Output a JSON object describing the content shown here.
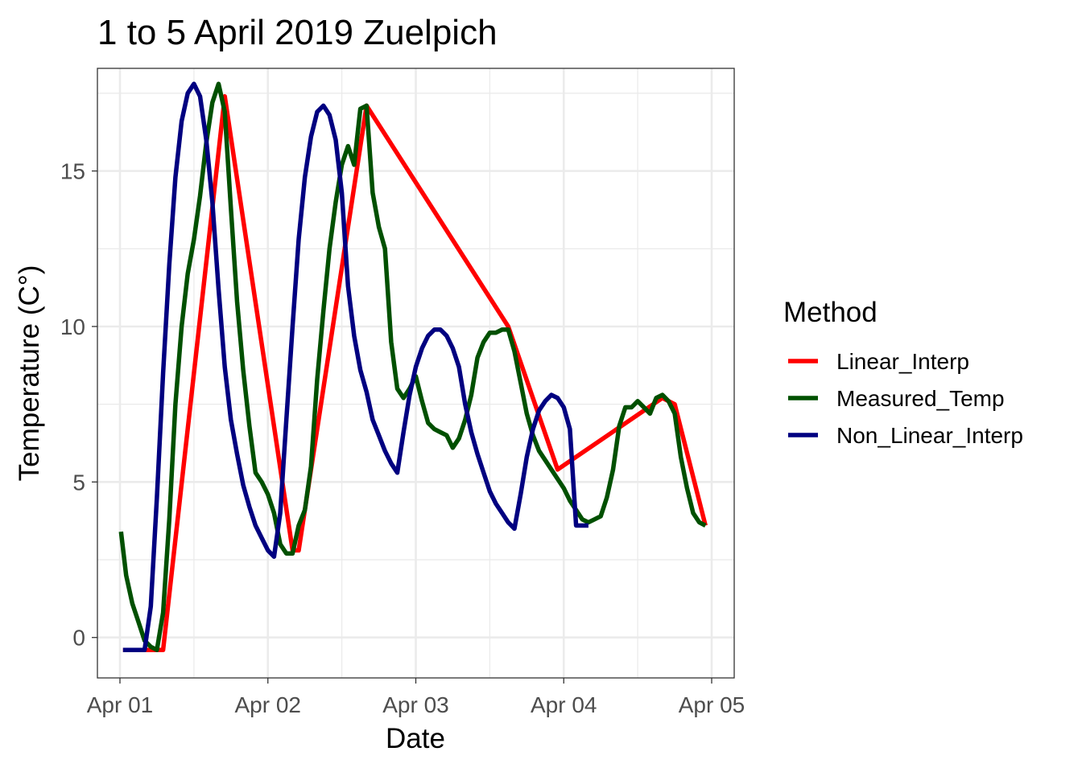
{
  "chart_data": {
    "type": "line",
    "title": "1 to 5 April 2019  Zuelpich",
    "xlabel": "Date",
    "ylabel": "Temperature (C°)",
    "x_axis": {
      "type": "date",
      "range": [
        "2019-04-01T00:00",
        "2019-04-05T00:00"
      ],
      "ticks": [
        {
          "value": "2019-04-01T00:00",
          "label": "Apr 01"
        },
        {
          "value": "2019-04-02T00:00",
          "label": "Apr 02"
        },
        {
          "value": "2019-04-03T00:00",
          "label": "Apr 03"
        },
        {
          "value": "2019-04-04T00:00",
          "label": "Apr 04"
        },
        {
          "value": "2019-04-05T00:00",
          "label": "Apr 05"
        }
      ]
    },
    "y_axis": {
      "range": [
        -1.3,
        18.3
      ],
      "ticks": [
        0,
        5,
        10,
        15
      ]
    },
    "grid": true,
    "legend": {
      "title": "Method",
      "position": "right"
    },
    "series": [
      {
        "name": "Linear_Interp",
        "color": "#FF0000",
        "points": [
          [
            "2019-04-01T00:30",
            -0.4
          ],
          [
            "2019-04-01T04:00",
            -0.4
          ],
          [
            "2019-04-01T07:00",
            -0.4
          ],
          [
            "2019-04-01T17:00",
            17.4
          ],
          [
            "2019-04-02T04:00",
            2.8
          ],
          [
            "2019-04-02T05:00",
            2.8
          ],
          [
            "2019-04-02T16:00",
            17.1
          ],
          [
            "2019-04-03T15:00",
            10.0
          ],
          [
            "2019-04-03T23:00",
            5.4
          ],
          [
            "2019-04-04T16:00",
            7.7
          ],
          [
            "2019-04-04T18:00",
            7.5
          ],
          [
            "2019-04-04T23:00",
            3.6
          ]
        ]
      },
      {
        "name": "Measured_Temp",
        "color": "#005000",
        "points": [
          [
            "2019-04-01T00:10",
            3.4
          ],
          [
            "2019-04-01T01:00",
            2.0
          ],
          [
            "2019-04-01T02:00",
            1.1
          ],
          [
            "2019-04-01T03:00",
            0.5
          ],
          [
            "2019-04-01T04:00",
            -0.1
          ],
          [
            "2019-04-01T05:00",
            -0.3
          ],
          [
            "2019-04-01T06:00",
            -0.4
          ],
          [
            "2019-04-01T07:00",
            0.8
          ],
          [
            "2019-04-01T08:00",
            3.8
          ],
          [
            "2019-04-01T09:00",
            7.5
          ],
          [
            "2019-04-01T10:00",
            10.0
          ],
          [
            "2019-04-01T11:00",
            11.7
          ],
          [
            "2019-04-01T12:00",
            12.8
          ],
          [
            "2019-04-01T13:00",
            14.2
          ],
          [
            "2019-04-01T14:00",
            15.9
          ],
          [
            "2019-04-01T15:00",
            17.2
          ],
          [
            "2019-04-01T16:00",
            17.8
          ],
          [
            "2019-04-01T17:00",
            16.9
          ],
          [
            "2019-04-01T18:00",
            13.8
          ],
          [
            "2019-04-01T19:00",
            10.8
          ],
          [
            "2019-04-01T20:00",
            8.6
          ],
          [
            "2019-04-01T21:00",
            6.8
          ],
          [
            "2019-04-01T22:00",
            5.3
          ],
          [
            "2019-04-01T23:00",
            5.0
          ],
          [
            "2019-04-02T00:00",
            4.6
          ],
          [
            "2019-04-02T01:00",
            4.0
          ],
          [
            "2019-04-02T02:00",
            3.0
          ],
          [
            "2019-04-02T03:00",
            2.7
          ],
          [
            "2019-04-02T04:00",
            2.7
          ],
          [
            "2019-04-02T05:00",
            3.6
          ],
          [
            "2019-04-02T06:00",
            4.1
          ],
          [
            "2019-04-02T07:00",
            5.5
          ],
          [
            "2019-04-02T08:00",
            8.3
          ],
          [
            "2019-04-02T09:00",
            10.5
          ],
          [
            "2019-04-02T10:00",
            12.5
          ],
          [
            "2019-04-02T11:00",
            14.0
          ],
          [
            "2019-04-02T12:00",
            15.2
          ],
          [
            "2019-04-02T13:00",
            15.8
          ],
          [
            "2019-04-02T14:00",
            15.2
          ],
          [
            "2019-04-02T15:00",
            17.0
          ],
          [
            "2019-04-02T16:00",
            17.1
          ],
          [
            "2019-04-02T17:00",
            14.3
          ],
          [
            "2019-04-02T18:00",
            13.2
          ],
          [
            "2019-04-02T19:00",
            12.5
          ],
          [
            "2019-04-02T20:00",
            9.5
          ],
          [
            "2019-04-02T21:00",
            8.0
          ],
          [
            "2019-04-02T22:00",
            7.7
          ],
          [
            "2019-04-02T23:00",
            8.0
          ],
          [
            "2019-04-03T00:00",
            8.4
          ],
          [
            "2019-04-03T01:00",
            7.6
          ],
          [
            "2019-04-03T02:00",
            6.9
          ],
          [
            "2019-04-03T03:00",
            6.7
          ],
          [
            "2019-04-03T04:00",
            6.6
          ],
          [
            "2019-04-03T05:00",
            6.5
          ],
          [
            "2019-04-03T06:00",
            6.1
          ],
          [
            "2019-04-03T07:00",
            6.4
          ],
          [
            "2019-04-03T08:00",
            7.0
          ],
          [
            "2019-04-03T09:00",
            7.8
          ],
          [
            "2019-04-03T10:00",
            9.0
          ],
          [
            "2019-04-03T11:00",
            9.5
          ],
          [
            "2019-04-03T12:00",
            9.8
          ],
          [
            "2019-04-03T13:00",
            9.8
          ],
          [
            "2019-04-03T14:00",
            9.9
          ],
          [
            "2019-04-03T15:00",
            9.9
          ],
          [
            "2019-04-03T16:00",
            9.2
          ],
          [
            "2019-04-03T17:00",
            8.2
          ],
          [
            "2019-04-03T18:00",
            7.2
          ],
          [
            "2019-04-03T19:00",
            6.5
          ],
          [
            "2019-04-03T20:00",
            6.0
          ],
          [
            "2019-04-03T21:00",
            5.7
          ],
          [
            "2019-04-03T22:00",
            5.4
          ],
          [
            "2019-04-03T23:00",
            5.1
          ],
          [
            "2019-04-04T00:00",
            4.8
          ],
          [
            "2019-04-04T01:00",
            4.4
          ],
          [
            "2019-04-04T02:00",
            4.1
          ],
          [
            "2019-04-04T03:00",
            3.8
          ],
          [
            "2019-04-04T04:00",
            3.7
          ],
          [
            "2019-04-04T05:00",
            3.8
          ],
          [
            "2019-04-04T06:00",
            3.9
          ],
          [
            "2019-04-04T07:00",
            4.5
          ],
          [
            "2019-04-04T08:00",
            5.4
          ],
          [
            "2019-04-04T09:00",
            6.8
          ],
          [
            "2019-04-04T10:00",
            7.4
          ],
          [
            "2019-04-04T11:00",
            7.4
          ],
          [
            "2019-04-04T12:00",
            7.6
          ],
          [
            "2019-04-04T13:00",
            7.4
          ],
          [
            "2019-04-04T14:00",
            7.2
          ],
          [
            "2019-04-04T15:00",
            7.7
          ],
          [
            "2019-04-04T16:00",
            7.8
          ],
          [
            "2019-04-04T17:00",
            7.6
          ],
          [
            "2019-04-04T18:00",
            7.2
          ],
          [
            "2019-04-04T19:00",
            5.8
          ],
          [
            "2019-04-04T20:00",
            4.8
          ],
          [
            "2019-04-04T21:00",
            4.0
          ],
          [
            "2019-04-04T22:00",
            3.7
          ],
          [
            "2019-04-04T23:00",
            3.6
          ]
        ]
      },
      {
        "name": "Non_Linear_Interp",
        "color": "#000080",
        "points": [
          [
            "2019-04-01T00:30",
            -0.4
          ],
          [
            "2019-04-01T02:00",
            -0.4
          ],
          [
            "2019-04-01T04:00",
            -0.4
          ],
          [
            "2019-04-01T05:00",
            1.0
          ],
          [
            "2019-04-01T06:00",
            4.5
          ],
          [
            "2019-04-01T07:00",
            8.5
          ],
          [
            "2019-04-01T08:00",
            12.0
          ],
          [
            "2019-04-01T09:00",
            14.8
          ],
          [
            "2019-04-01T10:00",
            16.6
          ],
          [
            "2019-04-01T11:00",
            17.5
          ],
          [
            "2019-04-01T12:00",
            17.8
          ],
          [
            "2019-04-01T13:00",
            17.4
          ],
          [
            "2019-04-01T14:00",
            16.0
          ],
          [
            "2019-04-01T15:00",
            14.0
          ],
          [
            "2019-04-01T16:00",
            11.2
          ],
          [
            "2019-04-01T17:00",
            8.7
          ],
          [
            "2019-04-01T18:00",
            7.0
          ],
          [
            "2019-04-01T19:00",
            5.9
          ],
          [
            "2019-04-01T20:00",
            4.9
          ],
          [
            "2019-04-01T21:00",
            4.2
          ],
          [
            "2019-04-01T22:00",
            3.6
          ],
          [
            "2019-04-01T23:00",
            3.2
          ],
          [
            "2019-04-02T00:00",
            2.8
          ],
          [
            "2019-04-02T01:00",
            2.6
          ],
          [
            "2019-04-02T02:00",
            4.0
          ],
          [
            "2019-04-02T03:00",
            7.0
          ],
          [
            "2019-04-02T04:00",
            10.0
          ],
          [
            "2019-04-02T05:00",
            12.8
          ],
          [
            "2019-04-02T06:00",
            14.8
          ],
          [
            "2019-04-02T07:00",
            16.1
          ],
          [
            "2019-04-02T08:00",
            16.9
          ],
          [
            "2019-04-02T09:00",
            17.1
          ],
          [
            "2019-04-02T10:00",
            16.8
          ],
          [
            "2019-04-02T11:00",
            16.0
          ],
          [
            "2019-04-02T12:00",
            14.3
          ],
          [
            "2019-04-02T13:00",
            11.3
          ],
          [
            "2019-04-02T14:00",
            9.7
          ],
          [
            "2019-04-02T15:00",
            8.6
          ],
          [
            "2019-04-02T16:00",
            7.9
          ],
          [
            "2019-04-02T17:00",
            7.0
          ],
          [
            "2019-04-02T18:00",
            6.5
          ],
          [
            "2019-04-02T19:00",
            6.0
          ],
          [
            "2019-04-02T20:00",
            5.6
          ],
          [
            "2019-04-02T21:00",
            5.3
          ],
          [
            "2019-04-02T22:00",
            6.6
          ],
          [
            "2019-04-02T23:00",
            7.8
          ],
          [
            "2019-04-03T00:00",
            8.7
          ],
          [
            "2019-04-03T01:00",
            9.3
          ],
          [
            "2019-04-03T02:00",
            9.7
          ],
          [
            "2019-04-03T03:00",
            9.9
          ],
          [
            "2019-04-03T04:00",
            9.9
          ],
          [
            "2019-04-03T05:00",
            9.7
          ],
          [
            "2019-04-03T06:00",
            9.3
          ],
          [
            "2019-04-03T07:00",
            8.7
          ],
          [
            "2019-04-03T08:00",
            7.5
          ],
          [
            "2019-04-03T09:00",
            6.6
          ],
          [
            "2019-04-03T10:00",
            5.9
          ],
          [
            "2019-04-03T11:00",
            5.3
          ],
          [
            "2019-04-03T12:00",
            4.7
          ],
          [
            "2019-04-03T13:00",
            4.3
          ],
          [
            "2019-04-03T14:00",
            4.0
          ],
          [
            "2019-04-03T15:00",
            3.7
          ],
          [
            "2019-04-03T16:00",
            3.5
          ],
          [
            "2019-04-03T17:00",
            4.6
          ],
          [
            "2019-04-03T18:00",
            5.8
          ],
          [
            "2019-04-03T19:00",
            6.7
          ],
          [
            "2019-04-03T20:00",
            7.3
          ],
          [
            "2019-04-03T21:00",
            7.6
          ],
          [
            "2019-04-03T22:00",
            7.8
          ],
          [
            "2019-04-03T23:00",
            7.7
          ],
          [
            "2019-04-04T00:00",
            7.4
          ],
          [
            "2019-04-04T01:00",
            6.7
          ],
          [
            "2019-04-04T02:00",
            3.6
          ],
          [
            "2019-04-04T03:00",
            3.6
          ],
          [
            "2019-04-04T04:00",
            3.6
          ]
        ]
      }
    ]
  }
}
